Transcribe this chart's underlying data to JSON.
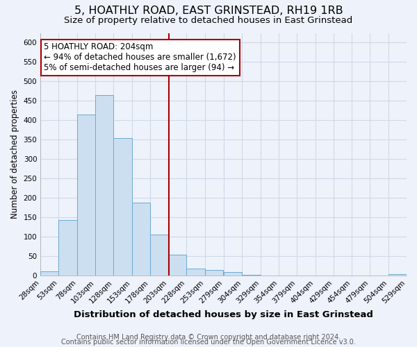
{
  "title": "5, HOATHLY ROAD, EAST GRINSTEAD, RH19 1RB",
  "subtitle": "Size of property relative to detached houses in East Grinstead",
  "xlabel": "Distribution of detached houses by size in East Grinstead",
  "ylabel": "Number of detached properties",
  "bin_edges": [
    28,
    53,
    78,
    103,
    128,
    153,
    178,
    203,
    228,
    253,
    279,
    304,
    329,
    354,
    379,
    404,
    429,
    454,
    479,
    504,
    529
  ],
  "bar_heights": [
    10,
    143,
    415,
    465,
    354,
    187,
    105,
    54,
    18,
    14,
    8,
    2,
    0,
    0,
    0,
    0,
    0,
    0,
    0,
    4
  ],
  "bar_color": "#ccdff0",
  "bar_edge_color": "#6aaad4",
  "property_size": 204,
  "vline_color": "#aa0000",
  "annotation_box_edge_color": "#aa0000",
  "annotation_text_line1": "5 HOATHLY ROAD: 204sqm",
  "annotation_text_line2": "← 94% of detached houses are smaller (1,672)",
  "annotation_text_line3": "5% of semi-detached houses are larger (94) →",
  "ylim": [
    0,
    625
  ],
  "yticks": [
    0,
    50,
    100,
    150,
    200,
    250,
    300,
    350,
    400,
    450,
    500,
    550,
    600
  ],
  "footer_line1": "Contains HM Land Registry data © Crown copyright and database right 2024.",
  "footer_line2": "Contains public sector information licensed under the Open Government Licence v3.0.",
  "background_color": "#eef2fa",
  "grid_color": "#d0d8e8",
  "title_fontsize": 11.5,
  "subtitle_fontsize": 9.5,
  "xlabel_fontsize": 9.5,
  "ylabel_fontsize": 8.5,
  "tick_fontsize": 7.5,
  "annotation_fontsize": 8.5,
  "footer_fontsize": 7.0
}
